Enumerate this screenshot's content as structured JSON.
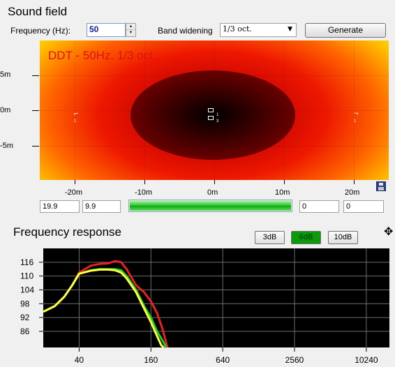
{
  "sound_field": {
    "title": "Sound field",
    "frequency_label": "Frequency (Hz):",
    "frequency_value": "50",
    "band_label": "Band widening",
    "band_value": "1/3 oct.",
    "generate_label": "Generate",
    "overlay_text": "DDT - 50Hz. 1/3 oct.",
    "y_ticks": [
      "5m",
      "0m",
      "-5m"
    ],
    "x_ticks": [
      "-20m",
      "-10m",
      "0m",
      "10m",
      "20m"
    ],
    "source_labels": [
      "1",
      "3"
    ],
    "speaker_left_label": "1",
    "speaker_right_label": "1",
    "field_a": "19.9",
    "field_b": "9.9",
    "field_c": "0",
    "field_d": "0",
    "progress": 1.0
  },
  "freq_response": {
    "title": "Frequency response",
    "buttons": [
      "3dB",
      "6dB",
      "10dB"
    ],
    "active_button": "6dB",
    "colors": {
      "red": "#e82020",
      "green": "#22cc22",
      "yellow": "#ffff40",
      "background": "#000000",
      "grid": "#6e6e6e"
    }
  },
  "chart_data": {
    "type": "line",
    "title": "",
    "xlabel": "",
    "ylabel": "",
    "x_scale": "log",
    "xlim": [
      20,
      16000
    ],
    "ylim": [
      79,
      122
    ],
    "x_ticks": [
      40,
      160,
      640,
      2560,
      10240
    ],
    "y_ticks": [
      116,
      110,
      104,
      98,
      92,
      86
    ],
    "grid": true,
    "series": [
      {
        "color": "red",
        "points": [
          [
            20,
            94.5
          ],
          [
            25,
            97
          ],
          [
            30,
            101
          ],
          [
            35,
            106
          ],
          [
            40,
            111.5
          ],
          [
            50,
            114.5
          ],
          [
            60,
            115.3
          ],
          [
            70,
            115.5
          ],
          [
            80,
            116.5
          ],
          [
            90,
            116
          ],
          [
            100,
            113
          ],
          [
            120,
            106
          ],
          [
            140,
            103
          ],
          [
            160,
            99
          ],
          [
            180,
            94
          ],
          [
            200,
            87
          ],
          [
            220,
            79
          ]
        ]
      },
      {
        "color": "green",
        "points": [
          [
            20,
            94.5
          ],
          [
            25,
            97
          ],
          [
            30,
            101
          ],
          [
            35,
            106
          ],
          [
            40,
            111
          ],
          [
            50,
            112.5
          ],
          [
            60,
            113
          ],
          [
            70,
            113
          ],
          [
            80,
            113
          ],
          [
            90,
            112.5
          ],
          [
            100,
            110
          ],
          [
            120,
            104
          ],
          [
            140,
            97
          ],
          [
            160,
            92
          ],
          [
            180,
            86
          ],
          [
            200,
            82
          ],
          [
            215,
            79
          ]
        ]
      },
      {
        "color": "yellow",
        "points": [
          [
            20,
            94.5
          ],
          [
            25,
            97
          ],
          [
            30,
            101
          ],
          [
            35,
            106
          ],
          [
            40,
            111
          ],
          [
            50,
            112.3
          ],
          [
            60,
            112.8
          ],
          [
            70,
            112.8
          ],
          [
            80,
            112.5
          ],
          [
            90,
            111.5
          ],
          [
            100,
            109
          ],
          [
            120,
            103
          ],
          [
            140,
            96
          ],
          [
            160,
            90
          ],
          [
            180,
            84
          ],
          [
            195,
            80
          ],
          [
            205,
            79
          ]
        ]
      }
    ]
  }
}
